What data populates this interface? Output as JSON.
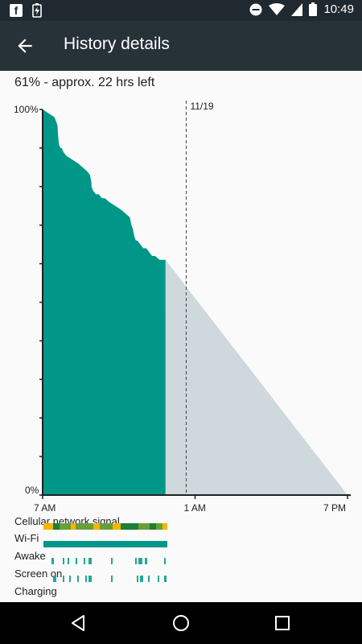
{
  "status_bar": {
    "time": "10:49",
    "icons": [
      "facebook-icon",
      "battery-charging-icon",
      "do-not-disturb-icon",
      "wifi-icon",
      "cell-signal-icon",
      "battery-icon"
    ]
  },
  "app_bar": {
    "title": "History details",
    "back_icon": "arrow-back-icon"
  },
  "summary": "61% - approx. 22 hrs left",
  "chart_data": {
    "type": "area",
    "y_labels": [
      "100%",
      "0%"
    ],
    "ylim": [
      0,
      100
    ],
    "x_tick_labels": [
      "7 AM",
      "1 AM",
      "7 PM"
    ],
    "marker_label": "11/19",
    "colors": {
      "history": "#009688",
      "prediction": "#cfd8dc",
      "marker": "#424242"
    },
    "history": {
      "name": "",
      "x_hours": [
        0,
        0.4,
        0.8,
        1.0,
        1.05,
        1.1,
        1.2,
        1.3,
        1.4,
        1.6,
        2.0,
        2.4,
        2.7,
        3.0,
        3.2,
        3.3,
        3.3,
        3.4,
        3.6,
        3.8,
        4.0,
        4.2,
        4.5,
        4.9,
        5.3,
        5.6,
        5.9,
        6.0,
        6.1,
        6.2,
        6.3,
        6.4,
        6.6,
        6.8,
        7.0,
        7.2,
        7.4,
        7.6,
        7.9,
        8.3
      ],
      "values": [
        100,
        99,
        98,
        96,
        93,
        91,
        90,
        90,
        89,
        88,
        87,
        86,
        85,
        84,
        83,
        81,
        80,
        79,
        78,
        78,
        77,
        77,
        76,
        75,
        74,
        73,
        72,
        70,
        69,
        67,
        66,
        66,
        65,
        64,
        64,
        63,
        62,
        62,
        61,
        61
      ]
    },
    "prediction": {
      "name": "",
      "x_hours": [
        8.3,
        20.6
      ],
      "values": [
        61,
        0
      ]
    },
    "x_range_hours": [
      0,
      20.6
    ],
    "marker_x_hours": 9.7
  },
  "tracks": [
    {
      "label": "Cellular network signal",
      "type": "signal"
    },
    {
      "label": "Wi-Fi",
      "type": "solid"
    },
    {
      "label": "Awake",
      "type": "ticks"
    },
    {
      "label": "Screen on",
      "type": "ticks"
    },
    {
      "label": "Charging",
      "type": "empty"
    }
  ],
  "nav_bar": {
    "icons": [
      "back-triangle-icon",
      "home-circle-icon",
      "recents-square-icon"
    ]
  }
}
